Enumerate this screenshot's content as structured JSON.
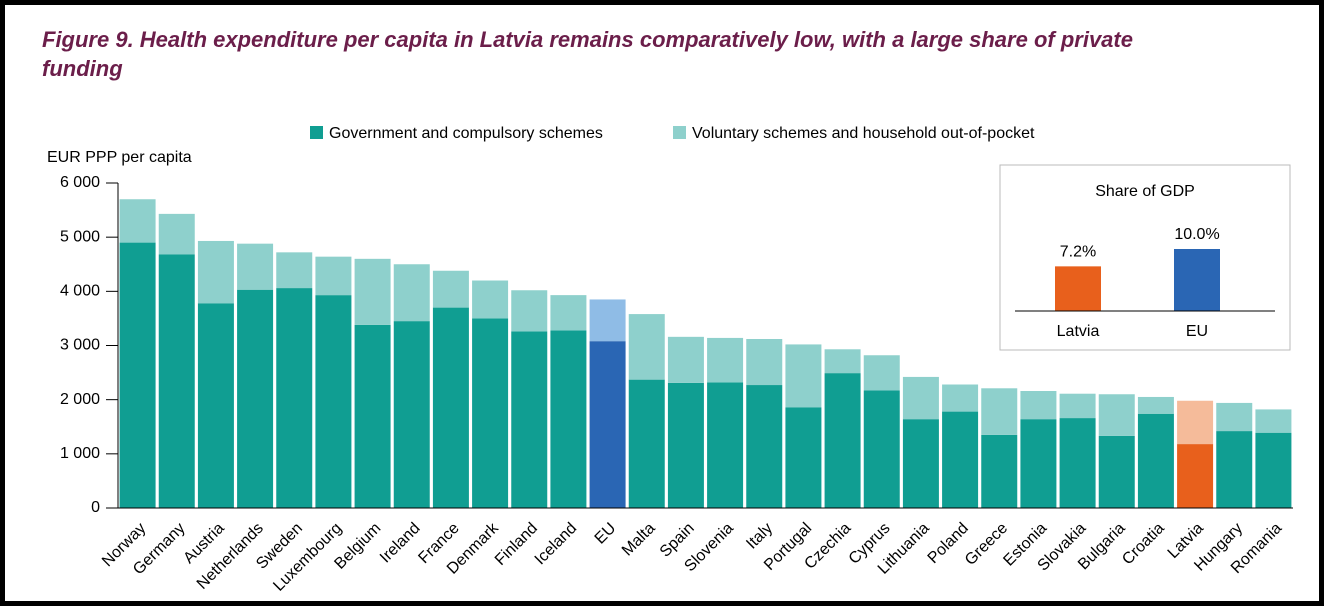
{
  "chart_data": [
    {
      "type": "stacked_bar",
      "title": "Figure 9. Health expenditure per capita in Latvia remains comparatively low, with a large share of private funding",
      "y_label": "EUR PPP per capita",
      "categories": [
        "Norway",
        "Germany",
        "Austria",
        "Netherlands",
        "Sweden",
        "Luxembourg",
        "Belgium",
        "Ireland",
        "France",
        "Denmark",
        "Finland",
        "Iceland",
        "EU",
        "Malta",
        "Spain",
        "Slovenia",
        "Italy",
        "Portugal",
        "Czechia",
        "Cyprus",
        "Lithuania",
        "Poland",
        "Greece",
        "Estonia",
        "Slovakia",
        "Bulgaria",
        "Croatia",
        "Latvia",
        "Hungary",
        "Romania"
      ],
      "series": [
        {
          "name": "Government and compulsory schemes",
          "color": "#109e92",
          "values": [
            4900,
            4680,
            3780,
            4030,
            4060,
            3930,
            3380,
            3450,
            3700,
            3500,
            3260,
            3280,
            3080,
            2370,
            2310,
            2320,
            2270,
            1860,
            2490,
            2170,
            1640,
            1780,
            1350,
            1640,
            1660,
            1330,
            1740,
            1180,
            1420,
            1390
          ]
        },
        {
          "name": "Voluntary schemes and household out-of-pocket",
          "color": "#8ed0cc",
          "values": [
            800,
            750,
            1150,
            850,
            660,
            710,
            1220,
            1050,
            680,
            700,
            760,
            650,
            770,
            1210,
            850,
            820,
            850,
            1160,
            440,
            650,
            780,
            500,
            860,
            520,
            450,
            770,
            310,
            800,
            520,
            430
          ]
        }
      ],
      "highlights": [
        {
          "category": "EU",
          "colors": [
            "#2a66b4",
            "#8fbce6"
          ]
        },
        {
          "category": "Latvia",
          "colors": [
            "#e8601c",
            "#f5bb9a"
          ]
        }
      ],
      "ylim": [
        0,
        6000
      ],
      "yticks": [
        0,
        {
          "value": 1000,
          "label": "1 000"
        },
        {
          "value": 2000,
          "label": "2 000"
        },
        {
          "value": 3000,
          "label": "3 000"
        },
        {
          "value": 4000,
          "label": "4 000"
        },
        {
          "value": 5000,
          "label": "5 000"
        },
        {
          "value": 6000,
          "label": "6 000"
        }
      ],
      "legend": "top"
    },
    {
      "type": "bar",
      "title": "Share of GDP",
      "categories": [
        "Latvia",
        "EU"
      ],
      "values": [
        7.2,
        10.0
      ],
      "value_labels": [
        "7.2%",
        "10.0%"
      ],
      "colors": [
        "#e8601c",
        "#2a66b4"
      ]
    }
  ]
}
